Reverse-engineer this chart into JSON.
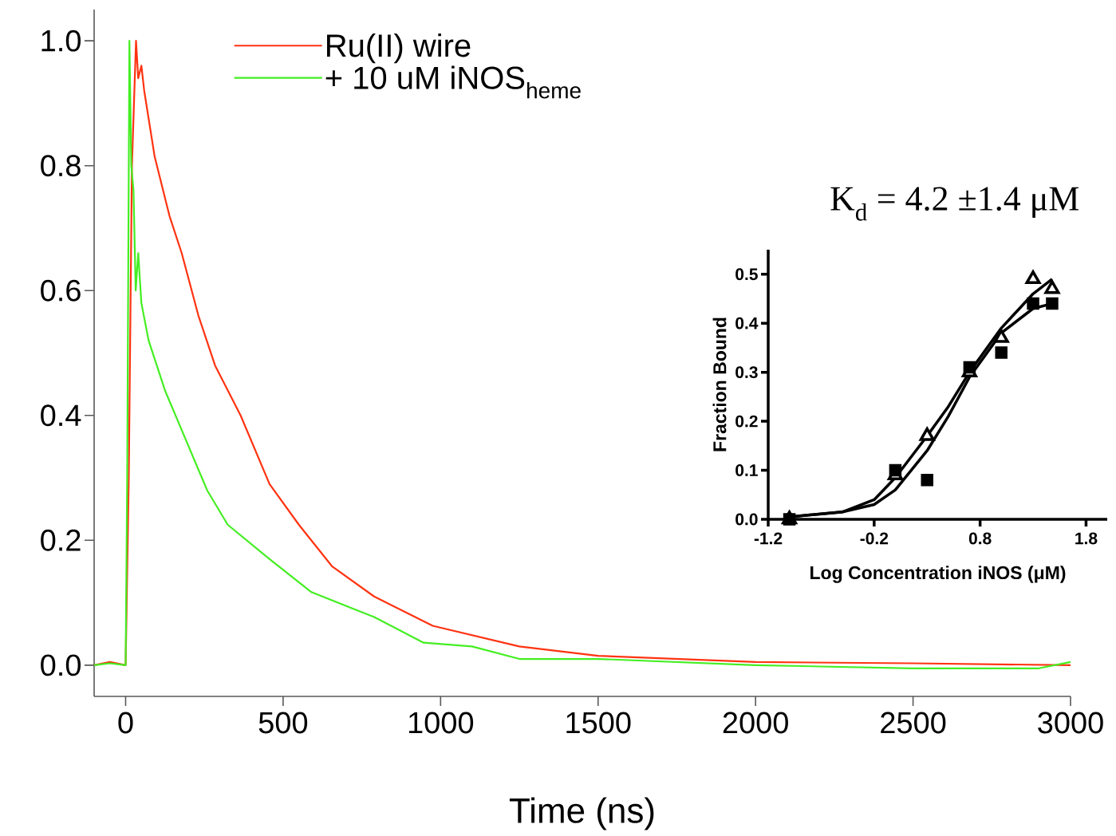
{
  "chart_data": [
    {
      "type": "line",
      "xlabel": "Time (ns)",
      "xlim": [
        -100,
        3000
      ],
      "ylim": [
        -0.05,
        1.05
      ],
      "xticks": [
        0,
        500,
        1000,
        1500,
        2000,
        2500,
        3000
      ],
      "yticks": [
        {
          "value": 0,
          "label": "0.0"
        },
        {
          "value": 0.2,
          "label": "0.2"
        },
        {
          "value": 0.4,
          "label": "0.4"
        },
        {
          "value": 0.6,
          "label": "0.6"
        },
        {
          "value": 0.8,
          "label": "0.8"
        },
        {
          "value": 1.0,
          "label": "1.0"
        }
      ],
      "legend": "top left",
      "series": [
        {
          "name": "Ru(II) wire",
          "color": "#ff3311",
          "x": [
            -100,
            -50,
            0,
            10,
            20,
            33,
            40,
            50,
            59,
            92,
            139,
            178,
            231,
            284,
            365,
            457,
            550,
            656,
            789,
            975,
            1250,
            1500,
            1750,
            2000,
            2500,
            3000
          ],
          "values": [
            0,
            0.005,
            0,
            0.3,
            0.8,
            1.0,
            0.94,
            0.96,
            0.92,
            0.815,
            0.72,
            0.66,
            0.56,
            0.48,
            0.4,
            0.29,
            0.225,
            0.158,
            0.11,
            0.063,
            0.03,
            0.015,
            0.01,
            0.005,
            0.003,
            0
          ]
        },
        {
          "name": "+ 10 uM iNOS$_{heme}$",
          "color": "#44ee22",
          "x": [
            -100,
            -50,
            0,
            5,
            12,
            18,
            25,
            32,
            40,
            50,
            73,
            125,
            192,
            259,
            324,
            457,
            590,
            789,
            946,
            1100,
            1250,
            1500,
            2000,
            2500,
            2900,
            3000
          ],
          "values": [
            0,
            0.003,
            0,
            0.3,
            1.0,
            0.8,
            0.76,
            0.6,
            0.66,
            0.58,
            0.52,
            0.44,
            0.36,
            0.28,
            0.225,
            0.17,
            0.117,
            0.077,
            0.036,
            0.03,
            0.01,
            0.01,
            0,
            -0.005,
            -0.005,
            0.005
          ]
        }
      ]
    },
    {
      "type": "scatter",
      "xlabel": "Log Concentration iNOS (μM)",
      "ylabel": "Fraction Bound",
      "xlim": [
        -1.2,
        2.0
      ],
      "ylim": [
        0,
        0.55
      ],
      "xticks": [
        -1.2,
        -0.2,
        0.8,
        1.8
      ],
      "yticks": [
        {
          "value": 0,
          "label": "0.0"
        },
        {
          "value": 0.1,
          "label": "0.1"
        },
        {
          "value": 0.2,
          "label": "0.2"
        },
        {
          "value": 0.3,
          "label": "0.3"
        },
        {
          "value": 0.4,
          "label": "0.4"
        },
        {
          "value": 0.5,
          "label": "0.5"
        }
      ],
      "annotations": [
        "K$_{d}$ = 4.2 ±1.4 μM"
      ],
      "series": [
        {
          "type": "scatter",
          "marker": "triangle",
          "color": "#000000",
          "x": [
            -1,
            0,
            0.3,
            0.7,
            1.0,
            1.3,
            1.48
          ],
          "values": [
            0,
            0.09,
            0.17,
            0.3,
            0.37,
            0.49,
            0.47
          ]
        },
        {
          "type": "scatter",
          "marker": "square",
          "color": "#000000",
          "x": [
            -1,
            0,
            0.3,
            0.7,
            1.0,
            1.3,
            1.48
          ],
          "values": [
            0,
            0.1,
            0.08,
            0.31,
            0.34,
            0.44,
            0.44
          ]
        },
        {
          "type": "line",
          "color": "#000000",
          "x": [
            -1,
            -0.5,
            -0.2,
            0,
            0.3,
            0.5,
            0.7,
            1.0,
            1.3,
            1.48
          ],
          "values": [
            0.005,
            0.015,
            0.04,
            0.085,
            0.17,
            0.23,
            0.3,
            0.39,
            0.46,
            0.49
          ]
        },
        {
          "type": "line",
          "color": "#000000",
          "x": [
            -1,
            -0.5,
            -0.2,
            0,
            0.3,
            0.5,
            0.7,
            1.0,
            1.3,
            1.48
          ],
          "values": [
            0.005,
            0.015,
            0.03,
            0.06,
            0.14,
            0.21,
            0.29,
            0.38,
            0.43,
            0.44
          ]
        }
      ]
    }
  ]
}
